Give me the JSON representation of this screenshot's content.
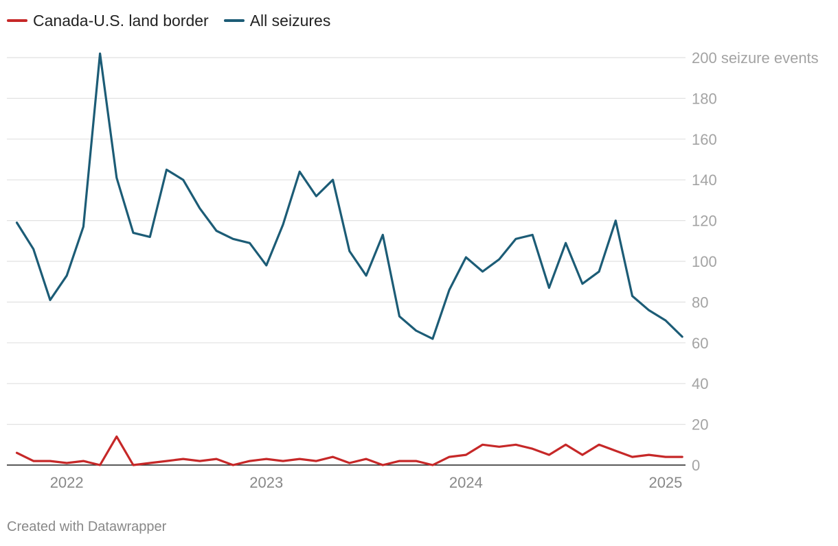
{
  "chart_data": {
    "type": "line",
    "title": "",
    "x_axis": {
      "ticks": [
        {
          "label": "2022",
          "value": 2022.0
        },
        {
          "label": "2023",
          "value": 2023.0
        },
        {
          "label": "2024",
          "value": 2024.0
        },
        {
          "label": "2025",
          "value": 2025.0
        }
      ],
      "range": [
        2021.7,
        2025.1
      ]
    },
    "y_axis": {
      "ticks": [
        0,
        20,
        40,
        60,
        80,
        100,
        120,
        140,
        160,
        180,
        200
      ],
      "top_tick_label": "200 seizure events",
      "range": [
        0,
        200
      ]
    },
    "x": [
      "2021-10",
      "2021-11",
      "2021-12",
      "2022-01",
      "2022-02",
      "2022-03",
      "2022-04",
      "2022-05",
      "2022-06",
      "2022-07",
      "2022-08",
      "2022-09",
      "2022-10",
      "2022-11",
      "2022-12",
      "2023-01",
      "2023-02",
      "2023-03",
      "2023-04",
      "2023-05",
      "2023-06",
      "2023-07",
      "2023-08",
      "2023-09",
      "2023-10",
      "2023-11",
      "2023-12",
      "2024-01",
      "2024-02",
      "2024-03",
      "2024-04",
      "2024-05",
      "2024-06",
      "2024-07",
      "2024-08",
      "2024-09",
      "2024-10",
      "2024-11",
      "2024-12",
      "2025-01",
      "2025-02"
    ],
    "series": [
      {
        "name": "Canada-U.S. land border",
        "color": "#c62828",
        "values": [
          6,
          2,
          2,
          1,
          2,
          0,
          14,
          0,
          1,
          2,
          3,
          2,
          3,
          0,
          2,
          3,
          2,
          3,
          2,
          4,
          1,
          3,
          0,
          2,
          2,
          0,
          4,
          5,
          10,
          9,
          10,
          8,
          5,
          10,
          5,
          10,
          7,
          4,
          5,
          4,
          4
        ]
      },
      {
        "name": "All seizures",
        "color": "#1c5c76",
        "values": [
          119,
          106,
          81,
          93,
          117,
          202,
          141,
          114,
          112,
          145,
          140,
          126,
          115,
          111,
          109,
          98,
          118,
          144,
          132,
          140,
          105,
          93,
          113,
          73,
          66,
          62,
          86,
          102,
          95,
          101,
          111,
          113,
          87,
          109,
          89,
          95,
          120,
          83,
          76,
          71,
          63
        ]
      }
    ]
  },
  "footer": "Created with Datawrapper"
}
